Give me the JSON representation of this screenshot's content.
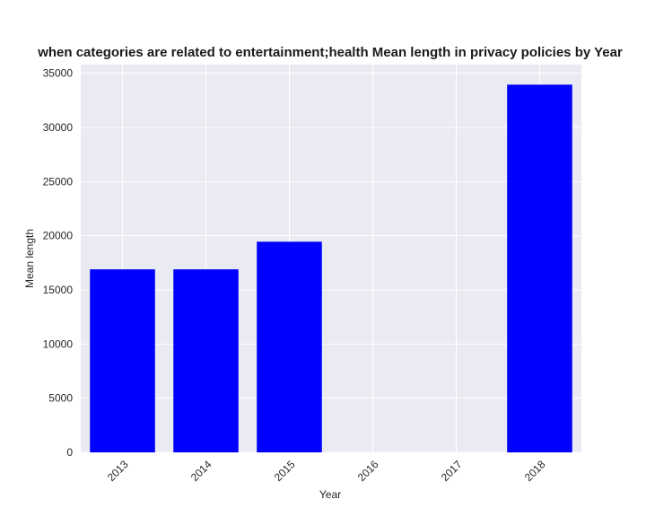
{
  "chart_data": {
    "type": "bar",
    "title": "when categories are related to entertainment;health Mean length in privacy policies by Year",
    "xlabel": "Year",
    "ylabel": "Mean length",
    "categories": [
      "2013",
      "2014",
      "2015",
      "2016",
      "2017",
      "2018"
    ],
    "values": [
      16900,
      16900,
      19450,
      0,
      0,
      33950
    ],
    "ylim": [
      0,
      35800
    ],
    "yticks": [
      0,
      5000,
      10000,
      15000,
      20000,
      25000,
      30000,
      35000
    ],
    "grid": true,
    "colors": {
      "bar": "#0000ff",
      "plot_bg": "#eaeaf2",
      "grid": "#ffffff"
    }
  }
}
